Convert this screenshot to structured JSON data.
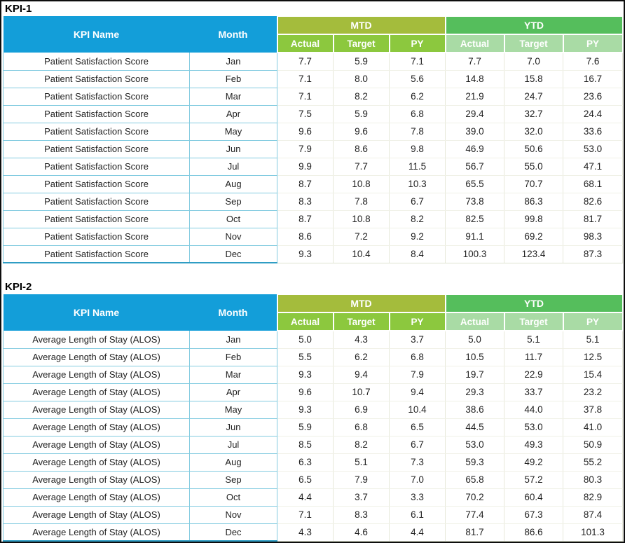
{
  "colors": {
    "frame": "#0d0d0d",
    "header-blue": "#139ED9",
    "mtd-band": "#A4BC3C",
    "ytd-band": "#55BE5C",
    "mtd-sub": "#8CC83E",
    "ytd-sub": "#A9DBA5",
    "teal-border": "#82CBE0",
    "teal-border-dark": "#2F9DC4",
    "light-border": "#E7E9DA"
  },
  "columns": {
    "kpi_name": "KPI Name",
    "month": "Month",
    "mtd": "MTD",
    "ytd": "YTD",
    "sub": [
      "Actual",
      "Target",
      "PY"
    ]
  },
  "tables": [
    {
      "title": "KPI-1",
      "kpi_name": "Patient Satisfaction Score",
      "rows": [
        {
          "month": "Jan",
          "mtd": [
            "7.7",
            "5.9",
            "7.1"
          ],
          "ytd": [
            "7.7",
            "7.0",
            "7.6"
          ]
        },
        {
          "month": "Feb",
          "mtd": [
            "7.1",
            "8.0",
            "5.6"
          ],
          "ytd": [
            "14.8",
            "15.8",
            "16.7"
          ]
        },
        {
          "month": "Mar",
          "mtd": [
            "7.1",
            "8.2",
            "6.2"
          ],
          "ytd": [
            "21.9",
            "24.7",
            "23.6"
          ]
        },
        {
          "month": "Apr",
          "mtd": [
            "7.5",
            "5.9",
            "6.8"
          ],
          "ytd": [
            "29.4",
            "32.7",
            "24.4"
          ]
        },
        {
          "month": "May",
          "mtd": [
            "9.6",
            "9.6",
            "7.8"
          ],
          "ytd": [
            "39.0",
            "32.0",
            "33.6"
          ]
        },
        {
          "month": "Jun",
          "mtd": [
            "7.9",
            "8.6",
            "9.8"
          ],
          "ytd": [
            "46.9",
            "50.6",
            "53.0"
          ]
        },
        {
          "month": "Jul",
          "mtd": [
            "9.9",
            "7.7",
            "11.5"
          ],
          "ytd": [
            "56.7",
            "55.0",
            "47.1"
          ]
        },
        {
          "month": "Aug",
          "mtd": [
            "8.7",
            "10.8",
            "10.3"
          ],
          "ytd": [
            "65.5",
            "70.7",
            "68.1"
          ]
        },
        {
          "month": "Sep",
          "mtd": [
            "8.3",
            "7.8",
            "6.7"
          ],
          "ytd": [
            "73.8",
            "86.3",
            "82.6"
          ]
        },
        {
          "month": "Oct",
          "mtd": [
            "8.7",
            "10.8",
            "8.2"
          ],
          "ytd": [
            "82.5",
            "99.8",
            "81.7"
          ]
        },
        {
          "month": "Nov",
          "mtd": [
            "8.6",
            "7.2",
            "9.2"
          ],
          "ytd": [
            "91.1",
            "69.2",
            "98.3"
          ]
        },
        {
          "month": "Dec",
          "mtd": [
            "9.3",
            "10.4",
            "8.4"
          ],
          "ytd": [
            "100.3",
            "123.4",
            "87.3"
          ]
        }
      ]
    },
    {
      "title": "KPI-2",
      "kpi_name": "Average Length of Stay (ALOS)",
      "rows": [
        {
          "month": "Jan",
          "mtd": [
            "5.0",
            "4.3",
            "3.7"
          ],
          "ytd": [
            "5.0",
            "5.1",
            "5.1"
          ]
        },
        {
          "month": "Feb",
          "mtd": [
            "5.5",
            "6.2",
            "6.8"
          ],
          "ytd": [
            "10.5",
            "11.7",
            "12.5"
          ]
        },
        {
          "month": "Mar",
          "mtd": [
            "9.3",
            "9.4",
            "7.9"
          ],
          "ytd": [
            "19.7",
            "22.9",
            "15.4"
          ]
        },
        {
          "month": "Apr",
          "mtd": [
            "9.6",
            "10.7",
            "9.4"
          ],
          "ytd": [
            "29.3",
            "33.7",
            "23.2"
          ]
        },
        {
          "month": "May",
          "mtd": [
            "9.3",
            "6.9",
            "10.4"
          ],
          "ytd": [
            "38.6",
            "44.0",
            "37.8"
          ]
        },
        {
          "month": "Jun",
          "mtd": [
            "5.9",
            "6.8",
            "6.5"
          ],
          "ytd": [
            "44.5",
            "53.0",
            "41.0"
          ]
        },
        {
          "month": "Jul",
          "mtd": [
            "8.5",
            "8.2",
            "6.7"
          ],
          "ytd": [
            "53.0",
            "49.3",
            "50.9"
          ]
        },
        {
          "month": "Aug",
          "mtd": [
            "6.3",
            "5.1",
            "7.3"
          ],
          "ytd": [
            "59.3",
            "49.2",
            "55.2"
          ]
        },
        {
          "month": "Sep",
          "mtd": [
            "6.5",
            "7.9",
            "7.0"
          ],
          "ytd": [
            "65.8",
            "57.2",
            "80.3"
          ]
        },
        {
          "month": "Oct",
          "mtd": [
            "4.4",
            "3.7",
            "3.3"
          ],
          "ytd": [
            "70.2",
            "60.4",
            "82.9"
          ]
        },
        {
          "month": "Nov",
          "mtd": [
            "7.1",
            "8.3",
            "6.1"
          ],
          "ytd": [
            "77.4",
            "67.3",
            "87.4"
          ]
        },
        {
          "month": "Dec",
          "mtd": [
            "4.3",
            "4.6",
            "4.4"
          ],
          "ytd": [
            "81.7",
            "86.6",
            "101.3"
          ]
        }
      ]
    }
  ]
}
